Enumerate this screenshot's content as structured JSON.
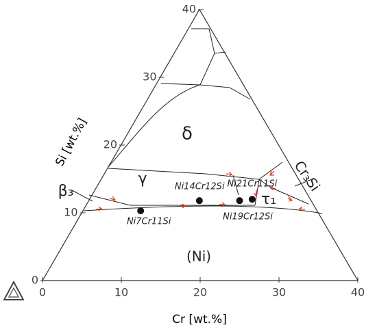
{
  "chart_data": {
    "type": "ternary",
    "xlabel": "Cr [wt.%]",
    "ylabel": "Si [wt.%]",
    "xlim": [
      0,
      40
    ],
    "xticks": [
      0,
      10,
      20,
      30,
      40
    ],
    "ylim": [
      0,
      40
    ],
    "yticks": [
      0,
      10,
      20,
      30,
      40
    ],
    "points": [
      {
        "label": "Ni7Cr11Si",
        "x": 7.3,
        "y": 10.3
      },
      {
        "label": "Ni14Cr12Si",
        "x": 14,
        "y": 11.8
      },
      {
        "label": "Ni19Cr12Si",
        "x": 19.1,
        "y": 11.8
      },
      {
        "label": "Ni21Cr11Si",
        "x": 20.6,
        "y": 12
      }
    ],
    "phase_labels": [
      "δ",
      "γ",
      "(Ni)",
      "β₃",
      "τ₁",
      "Cr₃Si"
    ]
  }
}
